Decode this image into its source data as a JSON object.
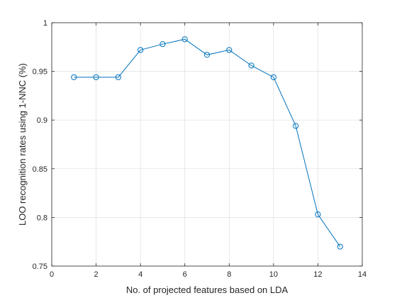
{
  "chart_data": {
    "type": "line",
    "title": "",
    "xlabel": "No. of projected features based on LDA",
    "ylabel": "LOO recognition rates using 1-NNC (%)",
    "xlim": [
      0,
      14
    ],
    "ylim": [
      0.75,
      1
    ],
    "xticks": [
      0,
      2,
      4,
      6,
      8,
      10,
      12,
      14
    ],
    "yticks": [
      0.75,
      0.8,
      0.85,
      0.9,
      0.95,
      1
    ],
    "xtick_labels": [
      "0",
      "2",
      "4",
      "6",
      "8",
      "10",
      "12",
      "14"
    ],
    "ytick_labels": [
      "0.75",
      "0.8",
      "0.85",
      "0.9",
      "0.95",
      "1"
    ],
    "grid": true,
    "series": [
      {
        "color": "#0072BD",
        "marker": "circle",
        "x": [
          1,
          2,
          3,
          4,
          5,
          6,
          7,
          8,
          9,
          10,
          11,
          12,
          13
        ],
        "y": [
          0.944,
          0.944,
          0.944,
          0.972,
          0.978,
          0.983,
          0.967,
          0.972,
          0.956,
          0.944,
          0.894,
          0.803,
          0.77
        ]
      }
    ]
  }
}
